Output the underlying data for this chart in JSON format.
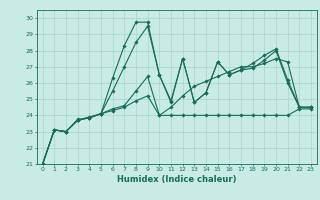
{
  "xlabel": "Humidex (Indice chaleur)",
  "xlim": [
    -0.5,
    23.5
  ],
  "ylim": [
    21,
    30.5
  ],
  "yticks": [
    21,
    22,
    23,
    24,
    25,
    26,
    27,
    28,
    29,
    30
  ],
  "xticks": [
    0,
    1,
    2,
    3,
    4,
    5,
    6,
    7,
    8,
    9,
    10,
    11,
    12,
    13,
    14,
    15,
    16,
    17,
    18,
    19,
    20,
    21,
    22,
    23
  ],
  "bg_color": "#c8ece4",
  "grid_color": "#a8d4cc",
  "line_color": "#1a6b5a",
  "series1": [
    [
      0,
      21.0
    ],
    [
      1,
      23.1
    ],
    [
      2,
      23.0
    ],
    [
      3,
      23.7
    ],
    [
      4,
      23.85
    ],
    [
      5,
      24.1
    ],
    [
      6,
      26.3
    ],
    [
      7,
      28.3
    ],
    [
      8,
      29.75
    ],
    [
      9,
      29.75
    ],
    [
      10,
      26.5
    ],
    [
      11,
      24.9
    ],
    [
      12,
      27.5
    ],
    [
      13,
      24.8
    ],
    [
      14,
      25.4
    ],
    [
      15,
      27.3
    ],
    [
      16,
      26.5
    ],
    [
      17,
      26.8
    ],
    [
      18,
      27.2
    ],
    [
      19,
      27.7
    ],
    [
      20,
      28.1
    ],
    [
      21,
      26.2
    ],
    [
      22,
      24.5
    ],
    [
      23,
      24.5
    ]
  ],
  "series2": [
    [
      0,
      21.0
    ],
    [
      1,
      23.1
    ],
    [
      2,
      23.0
    ],
    [
      3,
      23.75
    ],
    [
      4,
      23.85
    ],
    [
      5,
      24.1
    ],
    [
      6,
      24.3
    ],
    [
      7,
      24.5
    ],
    [
      8,
      24.9
    ],
    [
      9,
      25.2
    ],
    [
      10,
      24.0
    ],
    [
      11,
      24.0
    ],
    [
      12,
      24.0
    ],
    [
      13,
      24.0
    ],
    [
      14,
      24.0
    ],
    [
      15,
      24.0
    ],
    [
      16,
      24.0
    ],
    [
      17,
      24.0
    ],
    [
      18,
      24.0
    ],
    [
      19,
      24.0
    ],
    [
      20,
      24.0
    ],
    [
      21,
      24.0
    ],
    [
      22,
      24.4
    ],
    [
      23,
      24.4
    ]
  ],
  "series3": [
    [
      0,
      21.0
    ],
    [
      1,
      23.1
    ],
    [
      2,
      23.0
    ],
    [
      3,
      23.7
    ],
    [
      4,
      23.9
    ],
    [
      5,
      24.1
    ],
    [
      6,
      24.4
    ],
    [
      7,
      24.6
    ],
    [
      8,
      25.5
    ],
    [
      9,
      26.4
    ],
    [
      10,
      24.0
    ],
    [
      11,
      24.5
    ],
    [
      12,
      25.2
    ],
    [
      13,
      25.8
    ],
    [
      14,
      26.1
    ],
    [
      15,
      26.4
    ],
    [
      16,
      26.7
    ],
    [
      17,
      27.0
    ],
    [
      18,
      27.0
    ],
    [
      19,
      27.2
    ],
    [
      20,
      27.5
    ],
    [
      21,
      27.3
    ],
    [
      22,
      24.5
    ],
    [
      23,
      24.5
    ]
  ],
  "series4": [
    [
      0,
      21.0
    ],
    [
      1,
      23.1
    ],
    [
      2,
      23.0
    ],
    [
      3,
      23.7
    ],
    [
      4,
      23.85
    ],
    [
      5,
      24.1
    ],
    [
      6,
      25.5
    ],
    [
      7,
      27.0
    ],
    [
      8,
      28.5
    ],
    [
      9,
      29.5
    ],
    [
      10,
      26.5
    ],
    [
      11,
      24.8
    ],
    [
      12,
      27.5
    ],
    [
      13,
      24.8
    ],
    [
      14,
      25.4
    ],
    [
      15,
      27.3
    ],
    [
      16,
      26.5
    ],
    [
      17,
      26.8
    ],
    [
      18,
      26.9
    ],
    [
      19,
      27.4
    ],
    [
      20,
      28.0
    ],
    [
      21,
      26.0
    ],
    [
      22,
      24.5
    ],
    [
      23,
      24.5
    ]
  ]
}
